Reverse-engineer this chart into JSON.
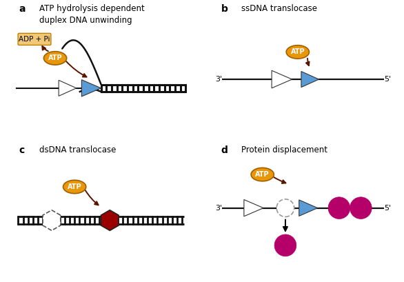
{
  "title_a": "ATP hydrolysis dependent\nduplex DNA unwinding",
  "title_b": "ssDNA translocase",
  "title_c": "dsDNA translocase",
  "title_d": "Protein displacement",
  "label_a": "a",
  "label_b": "b",
  "label_c": "c",
  "label_d": "d",
  "atp_color": "#E8960A",
  "atp_border_color": "#A06000",
  "adp_bg": "#F0C878",
  "adp_border": "#C08000",
  "blue_triangle_color": "#5B9BD5",
  "red_hexagon_color": "#9B0000",
  "dna_color": "#111111",
  "arrow_color": "#5A1500",
  "magenta_color": "#B5006A",
  "dashed_circle_color": "#999999",
  "bg_color": "#FFFFFF",
  "font_size_label": 10,
  "font_size_title": 8.5,
  "font_size_atp": 7,
  "font_size_strand": 8
}
